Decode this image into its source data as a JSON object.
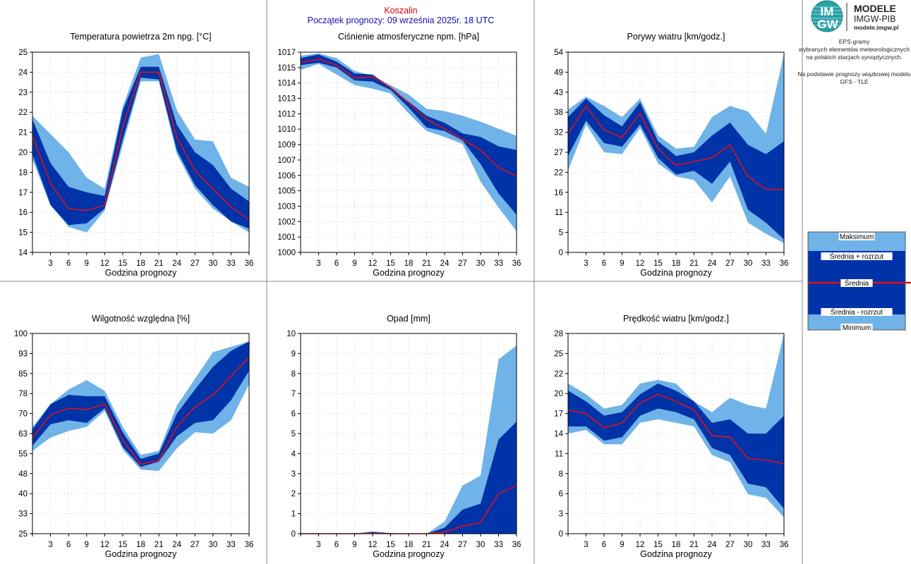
{
  "header": {
    "station": "Koszalin",
    "forecast_start": "Początek prognozy: 09 września 2025r. 18 UTC"
  },
  "logo": {
    "title": "MODELE",
    "subtitle": "IMGW-PIB",
    "url": "modele.imgw.pl",
    "badge_top": "IM",
    "badge_bottom": "GW"
  },
  "description": {
    "line1": "EPS-gramy",
    "line2": "wybranych elementów meteorologicznych",
    "line3": "na polskich stacjach  synoptycznych.",
    "line4": "Na podstawie prognozy wiązkowej modelu",
    "line5": "GFS - TLE"
  },
  "legend": {
    "max": "Maksimum",
    "mean_plus": "Średnia + rozrzut",
    "mean": "Średnia",
    "mean_minus": "Średnia - rozrzut",
    "min": "Minimum"
  },
  "colors": {
    "outer_band": "#6fb3e8",
    "inner_band": "#0033a8",
    "mean_line": "#e0101a",
    "axis": "#000000",
    "grid": "#bbbbbb"
  },
  "chart_data": [
    {
      "type": "area",
      "title": "Temperatura powietrza 2m npg. [°C]",
      "xlabel": "Godzina prognozy",
      "x": [
        0,
        3,
        6,
        9,
        12,
        15,
        18,
        21,
        24,
        27,
        30,
        33,
        36
      ],
      "yticks": [
        "14",
        "15",
        "16",
        "17",
        "18",
        "20",
        "21",
        "22",
        "23",
        "24",
        "25"
      ],
      "ylim": [
        14,
        25
      ],
      "series": [
        {
          "name": "Maksimum",
          "values": [
            21.5,
            20.5,
            19.5,
            18.1,
            17.5,
            22.0,
            24.7,
            24.9,
            21.8,
            20.2,
            20.1,
            18.1,
            17.6
          ]
        },
        {
          "name": "Średnia + rozrzut",
          "values": [
            21.3,
            18.9,
            17.6,
            17.3,
            17.1,
            21.8,
            24.2,
            24.2,
            21.0,
            19.5,
            18.8,
            17.5,
            16.8
          ]
        },
        {
          "name": "Średnia",
          "values": [
            20.4,
            17.8,
            16.4,
            16.3,
            16.6,
            20.9,
            23.9,
            23.9,
            20.3,
            18.5,
            17.5,
            16.5,
            15.8
          ]
        },
        {
          "name": "Średnia - rozrzut",
          "values": [
            19.4,
            16.6,
            15.5,
            15.6,
            16.4,
            20.2,
            23.6,
            23.5,
            19.6,
            17.7,
            16.6,
            15.7,
            15.3
          ]
        },
        {
          "name": "Minimum",
          "values": [
            19.1,
            16.6,
            15.4,
            15.1,
            16.3,
            19.9,
            23.4,
            23.4,
            19.4,
            17.5,
            16.4,
            15.7,
            15.1
          ]
        }
      ]
    },
    {
      "type": "area",
      "title": "Ciśnienie atmosferyczne npm. [hPa]",
      "xlabel": "Godzina prognozy",
      "x": [
        0,
        3,
        6,
        9,
        12,
        15,
        18,
        21,
        24,
        27,
        30,
        33,
        36
      ],
      "yticks": [
        "1000",
        "1001",
        "1002",
        "1003",
        "1005",
        "1006",
        "1007",
        "1009",
        "1010",
        "1012",
        "1013",
        "1014",
        "1015",
        "1017"
      ],
      "ylim": [
        1000,
        1017
      ],
      "series": [
        {
          "name": "Maksimum",
          "values": [
            1016.7,
            1016.9,
            1016.5,
            1015.4,
            1015.0,
            1014.2,
            1013.4,
            1012.2,
            1012.0,
            1011.6,
            1011.1,
            1010.5,
            1009.9
          ]
        },
        {
          "name": "Średnia + rozrzut",
          "values": [
            1016.5,
            1016.8,
            1016.2,
            1015.2,
            1015.1,
            1014.0,
            1012.8,
            1011.6,
            1011.0,
            1010.1,
            1009.8,
            1009.0,
            1008.7
          ]
        },
        {
          "name": "Średnia",
          "values": [
            1016.1,
            1016.4,
            1015.9,
            1014.8,
            1014.9,
            1014.0,
            1012.7,
            1011.3,
            1010.5,
            1009.6,
            1008.7,
            1007.2,
            1006.5
          ]
        },
        {
          "name": "Średnia - rozrzut",
          "values": [
            1015.9,
            1016.1,
            1015.7,
            1014.6,
            1014.5,
            1013.8,
            1012.3,
            1010.6,
            1010.3,
            1009.5,
            1007.5,
            1005.0,
            1003.2
          ]
        },
        {
          "name": "Minimum",
          "values": [
            1015.5,
            1016.0,
            1015.1,
            1014.2,
            1013.9,
            1013.5,
            1011.8,
            1010.3,
            1009.8,
            1009.2,
            1006.0,
            1003.8,
            1001.8
          ]
        }
      ]
    },
    {
      "type": "area",
      "title": "Porywy wiatru [km/godz.]",
      "xlabel": "Godzina prognozy",
      "x": [
        0,
        3,
        6,
        9,
        12,
        15,
        18,
        21,
        24,
        27,
        30,
        33,
        36
      ],
      "yticks": [
        "0",
        "5",
        "11",
        "16",
        "22",
        "27",
        "32",
        "38",
        "43",
        "49",
        "54"
      ],
      "ylim": [
        0,
        54
      ],
      "series": [
        {
          "name": "Maksimum",
          "values": [
            38.5,
            42.0,
            39.5,
            36.5,
            41.5,
            31.5,
            28.0,
            28.5,
            36.5,
            39.5,
            38.0,
            32.0,
            53.5
          ]
        },
        {
          "name": "Średnia + rozrzut",
          "values": [
            36.5,
            41.5,
            37.0,
            34.0,
            40.5,
            30.0,
            26.0,
            27.0,
            31.5,
            35.0,
            29.0,
            26.5,
            30.0
          ]
        },
        {
          "name": "Średnia",
          "values": [
            32.0,
            39.5,
            33.0,
            31.0,
            37.5,
            28.0,
            23.5,
            24.5,
            25.5,
            29.0,
            20.5,
            17.0,
            17.0
          ]
        },
        {
          "name": "Średnia - rozrzut",
          "values": [
            26.0,
            35.5,
            29.5,
            28.5,
            34.5,
            25.5,
            21.0,
            22.0,
            18.5,
            24.5,
            11.5,
            8.0,
            3.5
          ]
        },
        {
          "name": "Minimum",
          "values": [
            22.0,
            34.5,
            27.0,
            26.5,
            33.5,
            24.0,
            20.5,
            19.5,
            13.5,
            20.5,
            8.0,
            5.0,
            2.5
          ]
        }
      ]
    },
    {
      "type": "area",
      "title": "Wilgotność względna [%]",
      "xlabel": "Godzina prognozy",
      "x": [
        0,
        3,
        6,
        9,
        12,
        15,
        18,
        21,
        24,
        27,
        30,
        33,
        36
      ],
      "yticks": [
        "25",
        "33",
        "40",
        "48",
        "55",
        "63",
        "70",
        "78",
        "85",
        "93",
        "100"
      ],
      "ylim": [
        25,
        100
      ],
      "series": [
        {
          "name": "Maksimum",
          "values": [
            65.0,
            73.5,
            79.0,
            82.5,
            78.5,
            65.0,
            54.5,
            56.0,
            73.0,
            83.0,
            93.0,
            95.0,
            97.0
          ]
        },
        {
          "name": "Średnia + rozrzut",
          "values": [
            64.0,
            73.5,
            77.0,
            76.5,
            76.5,
            63.0,
            53.0,
            55.0,
            70.0,
            79.0,
            87.5,
            93.5,
            97.0
          ]
        },
        {
          "name": "Średnia",
          "values": [
            61.0,
            69.5,
            72.0,
            71.5,
            73.5,
            60.0,
            51.0,
            52.5,
            65.0,
            72.5,
            77.0,
            84.0,
            91.0
          ]
        },
        {
          "name": "Średnia - rozrzut",
          "values": [
            58.0,
            66.0,
            67.5,
            66.5,
            72.0,
            57.5,
            50.0,
            52.0,
            61.5,
            66.5,
            67.5,
            75.0,
            86.0
          ]
        },
        {
          "name": "Minimum",
          "values": [
            56.0,
            61.0,
            63.5,
            65.0,
            71.0,
            56.5,
            49.0,
            48.5,
            57.0,
            63.0,
            62.5,
            67.5,
            81.0
          ]
        }
      ]
    },
    {
      "type": "area",
      "title": "Opad [mm]",
      "xlabel": "Godzina prognozy",
      "x": [
        0,
        3,
        6,
        9,
        12,
        15,
        18,
        21,
        24,
        27,
        30,
        33,
        36
      ],
      "yticks": [
        "0",
        "1",
        "2",
        "3",
        "4",
        "5",
        "6",
        "7",
        "8",
        "9",
        "10"
      ],
      "ylim": [
        0,
        10
      ],
      "series": [
        {
          "name": "Maksimum",
          "values": [
            0,
            0,
            0,
            0,
            0.12,
            0.03,
            0,
            0,
            0.6,
            2.4,
            2.9,
            8.7,
            9.4
          ]
        },
        {
          "name": "Średnia + rozrzut",
          "values": [
            0,
            0,
            0,
            0,
            0.08,
            0.02,
            0,
            0,
            0.3,
            1.2,
            1.5,
            4.7,
            5.6
          ]
        },
        {
          "name": "Średnia",
          "values": [
            0,
            0,
            0,
            0,
            0.02,
            0,
            0,
            0,
            0.08,
            0.38,
            0.55,
            2.0,
            2.4
          ]
        },
        {
          "name": "Średnia - rozrzut",
          "values": [
            0,
            0,
            0,
            0,
            0,
            0,
            0,
            0,
            0,
            0,
            0,
            0,
            0
          ]
        },
        {
          "name": "Minimum",
          "values": [
            0,
            0,
            0,
            0,
            0,
            0,
            0,
            0,
            0,
            0,
            0,
            0,
            0
          ]
        }
      ]
    },
    {
      "type": "area",
      "title": "Prędkość wiatru [km/godz.]",
      "xlabel": "Godzina prognozy",
      "x": [
        0,
        3,
        6,
        9,
        12,
        15,
        18,
        21,
        24,
        27,
        30,
        33,
        36
      ],
      "yticks": [
        "0",
        "3",
        "6",
        "8",
        "11",
        "14",
        "17",
        "20",
        "22",
        "25",
        "28"
      ],
      "ylim": [
        0,
        28
      ],
      "series": [
        {
          "name": "Maksimum",
          "values": [
            21.0,
            19.5,
            17.5,
            18.0,
            21.0,
            21.5,
            21.0,
            18.5,
            17.0,
            19.0,
            18.0,
            17.5,
            28.0
          ]
        },
        {
          "name": "Średnia + rozrzut",
          "values": [
            20.0,
            18.5,
            16.5,
            17.0,
            19.5,
            21.0,
            20.0,
            18.5,
            15.5,
            16.0,
            14.0,
            14.0,
            16.5
          ]
        },
        {
          "name": "Średnia",
          "values": [
            17.3,
            16.8,
            14.8,
            15.5,
            18.3,
            19.5,
            18.5,
            17.3,
            13.7,
            13.5,
            10.5,
            10.3,
            9.8
          ]
        },
        {
          "name": "Średnia - rozrzut",
          "values": [
            15.0,
            15.0,
            13.0,
            13.5,
            16.5,
            17.5,
            17.0,
            16.0,
            12.0,
            11.0,
            7.0,
            6.5,
            3.5
          ]
        },
        {
          "name": "Minimum",
          "values": [
            14.0,
            14.5,
            12.5,
            12.5,
            15.5,
            16.0,
            15.5,
            15.0,
            11.0,
            10.0,
            5.5,
            5.0,
            2.3
          ]
        }
      ]
    }
  ]
}
